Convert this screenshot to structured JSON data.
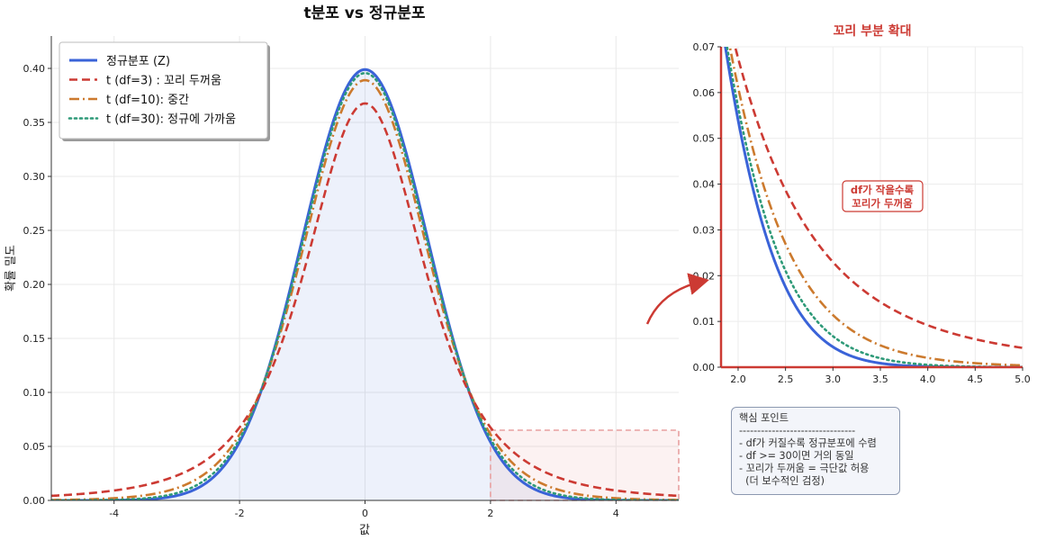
{
  "chart_data": [
    {
      "type": "line",
      "title": "t분포 vs 정규분포",
      "xlabel": "값",
      "ylabel": "확률 밀도",
      "xlim": [
        -5,
        5
      ],
      "ylim": [
        0,
        0.43
      ],
      "xticks": [
        "-4",
        "-2",
        "0",
        "2",
        "4"
      ],
      "yticks": [
        "0.00",
        "0.05",
        "0.10",
        "0.15",
        "0.20",
        "0.25",
        "0.30",
        "0.35",
        "0.40"
      ],
      "grid": true,
      "legend_position": "top-left",
      "series": [
        {
          "name": "정규분포 (Z)",
          "kind": "normal",
          "color": "#3a63d8",
          "style": "solid"
        },
        {
          "name": "t (df=3) : 꼬리 두꺼움",
          "kind": "t",
          "df": 3,
          "color": "#cc3a33",
          "style": "dashed"
        },
        {
          "name": "t (df=10): 중간",
          "kind": "t",
          "df": 10,
          "color": "#cc7a2e",
          "style": "dashdot"
        },
        {
          "name": "t (df=30): 정규에 가까움",
          "kind": "t",
          "df": 30,
          "color": "#2e9a78",
          "style": "dotted"
        }
      ],
      "highlight_region": {
        "x": [
          2,
          5
        ],
        "y": [
          0,
          0.065
        ],
        "color": "#e8a0a0"
      }
    },
    {
      "type": "line",
      "title": "꼬리 부분 확대",
      "xlim": [
        1.82,
        5.0
      ],
      "ylim": [
        0,
        0.07
      ],
      "xticks": [
        "2.0",
        "2.5",
        "3.0",
        "3.5",
        "4.0",
        "4.5",
        "5.0"
      ],
      "yticks": [
        "0.00",
        "0.01",
        "0.02",
        "0.03",
        "0.04",
        "0.05",
        "0.06",
        "0.07"
      ],
      "grid": true,
      "annotation": [
        "df가 작을수록",
        "꼬리가 두꺼움"
      ],
      "series_same_as_main": true
    }
  ],
  "note": {
    "title": "핵심 포인트",
    "lines": [
      "--------------------------------",
      "- df가 커질수록 정규분포에 수렴",
      "- df >= 30이면 거의 동일",
      "- 꼬리가 두꺼움 = 극단값 허용",
      "  (더 보수적인 검정)"
    ]
  }
}
